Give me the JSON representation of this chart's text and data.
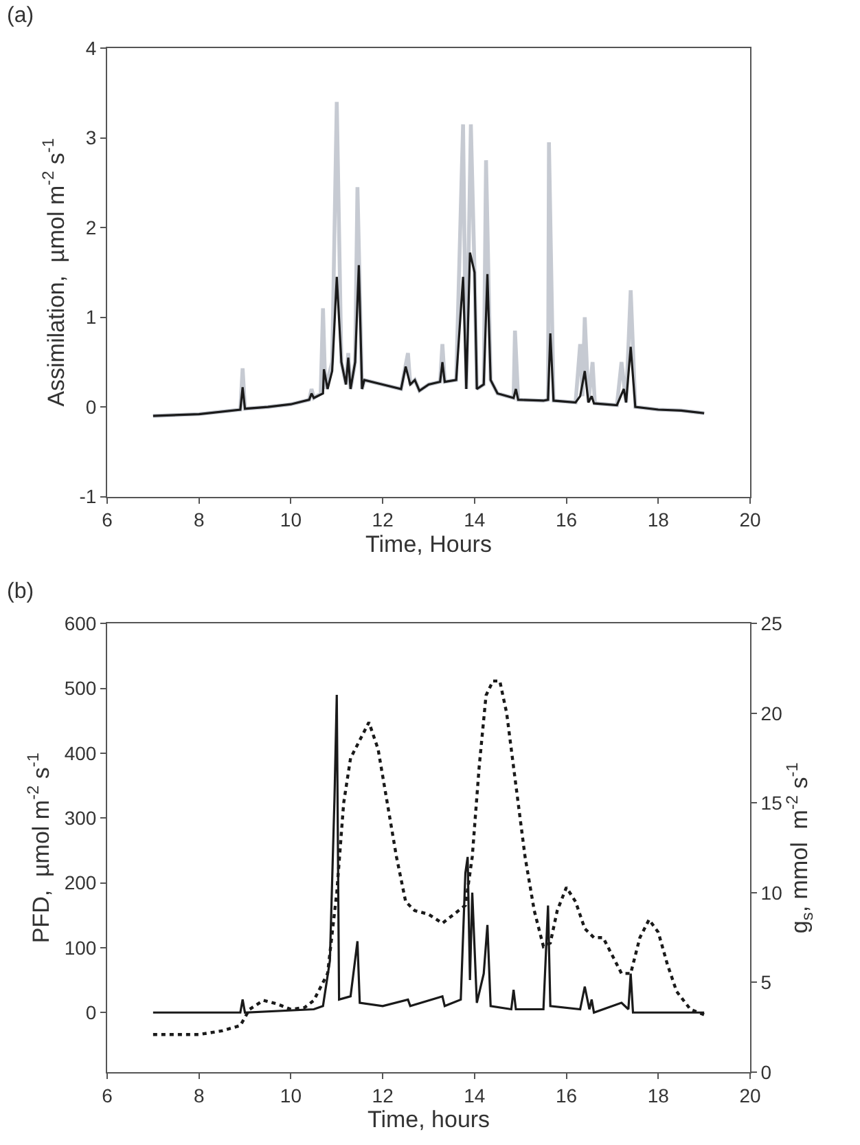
{
  "chart_data": [
    {
      "type": "line",
      "xlabel": "Time, Hours",
      "ylabel": "Assimilation,  µmol m$^{-2}$ s$^{-1}$",
      "annotations": [
        "(a)"
      ],
      "xlim": [
        6,
        20
      ],
      "xticks": [
        6,
        8,
        10,
        12,
        14,
        16,
        18,
        20
      ],
      "ylim": [
        -1,
        4
      ],
      "yticks": [
        -1,
        0,
        1,
        2,
        3,
        4
      ],
      "marker": "none",
      "line_style": "solid",
      "series": [
        {
          "color": "#c6cad2",
          "x": [
            7.0,
            8.0,
            8.9,
            8.95,
            9.0,
            9.5,
            10.0,
            10.4,
            10.45,
            10.5,
            10.65,
            10.7,
            10.75,
            10.9,
            11.0,
            11.1,
            11.2,
            11.25,
            11.3,
            11.4,
            11.45,
            11.55,
            11.6,
            12.0,
            12.4,
            12.55,
            12.6,
            12.7,
            12.8,
            13.0,
            13.25,
            13.3,
            13.35,
            13.6,
            13.75,
            13.82,
            13.92,
            14.0,
            14.05,
            14.2,
            14.25,
            14.35,
            14.5,
            14.85,
            14.88,
            14.95,
            15.5,
            15.6,
            15.62,
            15.72,
            16.2,
            16.3,
            16.35,
            16.4,
            16.48,
            16.57,
            16.62,
            17.1,
            17.2,
            17.3,
            17.4,
            17.5,
            18.0,
            18.5,
            19.0
          ],
          "values": [
            -0.1,
            -0.08,
            -0.03,
            0.43,
            -0.02,
            0.0,
            0.03,
            0.08,
            0.2,
            0.1,
            0.15,
            1.1,
            0.2,
            0.5,
            3.4,
            0.5,
            0.25,
            0.6,
            0.2,
            0.5,
            2.45,
            0.2,
            0.3,
            0.25,
            0.2,
            0.6,
            0.25,
            0.3,
            0.18,
            0.25,
            0.28,
            0.7,
            0.28,
            0.3,
            3.15,
            0.2,
            3.15,
            1.5,
            0.2,
            0.25,
            2.75,
            0.3,
            0.15,
            0.1,
            0.85,
            0.08,
            0.07,
            0.08,
            2.95,
            0.07,
            0.05,
            0.7,
            0.12,
            1.0,
            0.05,
            0.5,
            0.04,
            0.02,
            0.5,
            0.05,
            1.3,
            0.0,
            -0.03,
            -0.04,
            -0.07
          ]
        },
        {
          "color": "#1a1a1a",
          "x": [
            7.0,
            8.0,
            8.9,
            8.95,
            9.0,
            9.5,
            10.0,
            10.4,
            10.45,
            10.5,
            10.7,
            10.72,
            10.8,
            10.9,
            11.0,
            11.1,
            11.2,
            11.25,
            11.3,
            11.4,
            11.48,
            11.55,
            11.6,
            12.0,
            12.4,
            12.5,
            12.6,
            12.7,
            12.8,
            13.0,
            13.25,
            13.3,
            13.35,
            13.6,
            13.75,
            13.82,
            13.9,
            14.0,
            14.05,
            14.2,
            14.28,
            14.35,
            14.5,
            14.85,
            14.9,
            14.95,
            15.5,
            15.6,
            15.65,
            15.72,
            16.2,
            16.3,
            16.4,
            16.48,
            16.55,
            16.6,
            17.1,
            17.25,
            17.3,
            17.4,
            17.5,
            18.0,
            18.5,
            19.0
          ],
          "values": [
            -0.1,
            -0.08,
            -0.03,
            0.22,
            -0.02,
            0.0,
            0.03,
            0.08,
            0.15,
            0.1,
            0.15,
            0.42,
            0.2,
            0.4,
            1.45,
            0.5,
            0.25,
            0.55,
            0.2,
            0.5,
            1.58,
            0.2,
            0.3,
            0.25,
            0.2,
            0.45,
            0.25,
            0.3,
            0.18,
            0.25,
            0.28,
            0.5,
            0.28,
            0.3,
            1.45,
            0.2,
            1.72,
            1.5,
            0.2,
            0.25,
            1.48,
            0.3,
            0.15,
            0.1,
            0.2,
            0.08,
            0.07,
            0.08,
            0.82,
            0.07,
            0.05,
            0.12,
            0.4,
            0.05,
            0.12,
            0.04,
            0.02,
            0.2,
            0.05,
            0.67,
            0.0,
            -0.03,
            -0.04,
            -0.07
          ]
        }
      ]
    },
    {
      "type": "line",
      "xlabel": "Time, hours",
      "ylabel": "PFD,  µmol m$^{-2}$ s$^{-1}$",
      "y2label": "g$_{s}$, mmol  m$^{-2}$ s$^{-1}$",
      "annotations": [
        "(b)"
      ],
      "xlim": [
        6,
        20
      ],
      "xticks": [
        6,
        8,
        10,
        12,
        14,
        16,
        18,
        20
      ],
      "ylim": [
        -92,
        600
      ],
      "yticks": [
        0,
        100,
        200,
        300,
        400,
        500,
        600
      ],
      "y2lim": [
        0,
        25
      ],
      "y2ticks": [
        0,
        5,
        10,
        15,
        20,
        25
      ],
      "marker": "none",
      "series": [
        {
          "color": "#1a1a1a",
          "line_style": "solid",
          "x": [
            7.0,
            8.9,
            8.95,
            9.0,
            10.5,
            10.7,
            10.85,
            10.95,
            11.0,
            11.05,
            11.3,
            11.45,
            11.5,
            12.0,
            12.55,
            12.6,
            13.3,
            13.35,
            13.7,
            13.8,
            13.85,
            13.9,
            13.95,
            14.0,
            14.05,
            14.2,
            14.28,
            14.35,
            14.8,
            14.85,
            14.9,
            15.5,
            15.6,
            15.65,
            16.3,
            16.4,
            16.5,
            16.55,
            16.6,
            17.2,
            17.35,
            17.4,
            17.45,
            19.0
          ],
          "values": [
            0,
            0,
            20,
            0,
            5,
            10,
            80,
            330,
            490,
            20,
            25,
            110,
            15,
            10,
            20,
            10,
            25,
            10,
            20,
            215,
            240,
            50,
            185,
            100,
            15,
            60,
            135,
            10,
            5,
            35,
            5,
            5,
            165,
            10,
            5,
            40,
            5,
            20,
            0,
            15,
            5,
            60,
            0,
            0
          ]
        },
        {
          "color": "#1a1a1a",
          "line_style": "dotted",
          "axis": "y2",
          "x": [
            7.0,
            7.5,
            8.0,
            8.5,
            8.9,
            9.1,
            9.4,
            9.7,
            10.0,
            10.3,
            10.5,
            10.8,
            11.0,
            11.15,
            11.3,
            11.5,
            11.7,
            11.9,
            12.1,
            12.3,
            12.5,
            12.7,
            13.0,
            13.3,
            13.6,
            13.8,
            13.95,
            14.1,
            14.25,
            14.4,
            14.55,
            14.7,
            14.9,
            15.1,
            15.3,
            15.5,
            15.65,
            15.8,
            16.0,
            16.2,
            16.4,
            16.6,
            16.8,
            17.0,
            17.2,
            17.4,
            17.6,
            17.8,
            18.0,
            18.2,
            18.4,
            18.7,
            19.0
          ],
          "values": [
            2.1,
            2.1,
            2.1,
            2.3,
            2.6,
            3.5,
            4.0,
            3.8,
            3.5,
            3.6,
            4.0,
            5.5,
            10,
            15,
            17.5,
            18.5,
            19.5,
            18,
            15,
            12,
            9.5,
            9.0,
            8.8,
            8.3,
            8.9,
            9.3,
            12,
            17,
            21,
            21.8,
            21.8,
            20,
            16,
            12,
            9,
            7.0,
            7.2,
            9,
            10.3,
            9.5,
            8,
            7.5,
            7.5,
            6.5,
            5.5,
            5.5,
            7.5,
            8.5,
            7.8,
            6,
            4.5,
            3.5,
            3.2
          ]
        }
      ]
    }
  ]
}
